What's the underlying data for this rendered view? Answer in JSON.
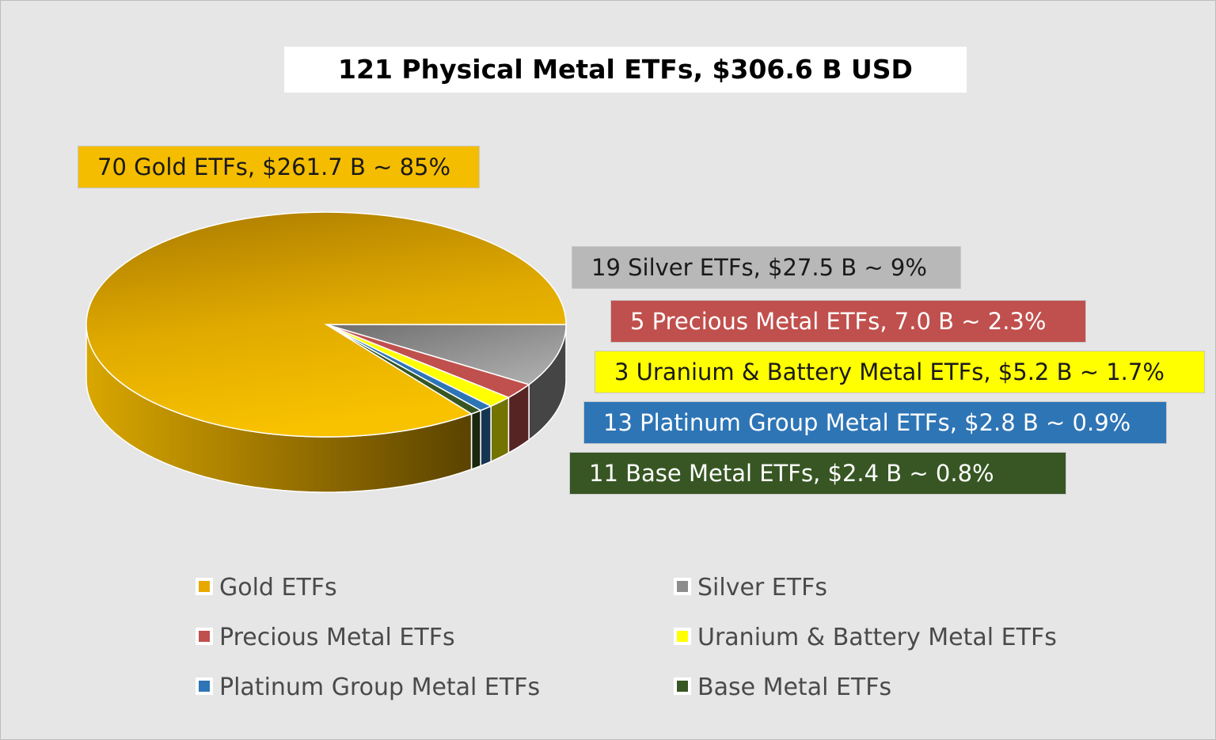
{
  "chart_data": {
    "type": "pie",
    "title": "121 Physical Metal ETFs, $306.6 B USD",
    "series": [
      {
        "name": "Gold ETFs",
        "value": 261.7,
        "percent": 85,
        "count": 70,
        "label": "70 Gold ETFs, $261.7 B ~ 85%",
        "color": "#f5bd00",
        "label_text_color": "#1a1a1a"
      },
      {
        "name": "Silver ETFs",
        "value": 27.5,
        "percent": 9,
        "count": 19,
        "label": "19 Silver ETFs, $27.5 B ~ 9%",
        "color": "#999999",
        "label_text_color": "#1a1a1a"
      },
      {
        "name": "Precious Metal ETFs",
        "value": 7.0,
        "percent": 2.3,
        "count": 5,
        "label": "5 Precious Metal ETFs, 7.0 B ~ 2.3%",
        "color": "#c0504d",
        "label_text_color": "#ffffff"
      },
      {
        "name": "Uranium & Battery Metal ETFs",
        "value": 5.2,
        "percent": 1.7,
        "count": 3,
        "label": "3 Uranium & Battery Metal ETFs, $5.2 B ~ 1.7%",
        "color": "#ffff00",
        "label_text_color": "#1a1a1a"
      },
      {
        "name": "Platinum Group Metal ETFs",
        "value": 2.8,
        "percent": 0.9,
        "count": 13,
        "label": "13 Platinum Group Metal ETFs, $2.8 B ~ 0.9%",
        "color": "#2e75b6",
        "label_text_color": "#ffffff"
      },
      {
        "name": "Base Metal ETFs",
        "value": 2.4,
        "percent": 0.8,
        "count": 11,
        "label": "11 Base Metal ETFs, $2.4 B ~ 0.8%",
        "color": "#375623",
        "label_text_color": "#ffffff"
      }
    ],
    "legend": {
      "position": "bottom",
      "entries": [
        "Gold ETFs",
        "Silver ETFs",
        "Precious Metal ETFs",
        "Uranium & Battery Metal ETFs",
        "Platinum Group Metal ETFs",
        "Base Metal ETFs"
      ]
    }
  },
  "colors": {
    "background": "#e6e6e6",
    "title_box": "#ffffff"
  }
}
